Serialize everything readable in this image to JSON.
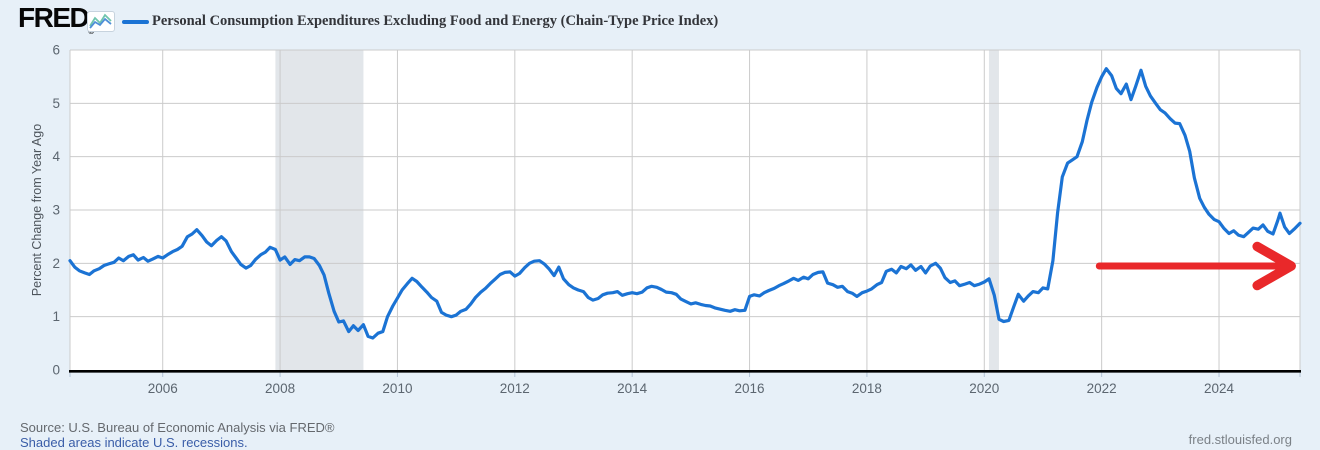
{
  "header": {
    "logo_text": "FRED",
    "registered_mark": "®"
  },
  "footer": {
    "source_text": "Source: U.S. Bureau of Economic Analysis via FRED®",
    "recession_note": "Shaded areas indicate U.S. recessions.",
    "site_url": "fred.stlouisfed.org"
  },
  "colors": {
    "background": "#e7f0f8",
    "plot_background": "#ffffff",
    "grid": "#cbcbcb",
    "axis": "#000000",
    "tick": "#b3c3d6",
    "tick_label": "#5c6670",
    "recession": "#e2e6ea",
    "series": "#1b73d4",
    "arrow": "#e9282a",
    "link": "#3a5da8",
    "source_text": "#65696e",
    "url_text": "#7b8187",
    "title_text": "#33353a",
    "logo_icon_blue": "#4f8fd8",
    "logo_icon_teal": "#6fc5ad"
  },
  "chart_data": {
    "type": "line",
    "title": "Personal Consumption Expenditures Excluding Food and Energy (Chain-Type Price Index)",
    "xlabel": "",
    "ylabel": "Percent Change from Year Ago",
    "x_domain": [
      2004.42,
      2025.38
    ],
    "ylim": [
      0,
      6
    ],
    "x_ticks": [
      2006,
      2008,
      2010,
      2012,
      2014,
      2016,
      2018,
      2020,
      2022,
      2024
    ],
    "y_ticks": [
      0,
      1,
      2,
      3,
      4,
      5,
      6
    ],
    "grid": true,
    "legend_position": "top-left",
    "recession_bands": [
      [
        2007.92,
        2009.42
      ],
      [
        2020.08,
        2020.25
      ]
    ],
    "annotation_arrow": {
      "from_year": 2021.96,
      "to_year": 2025.23,
      "value": 1.95
    },
    "series": [
      {
        "name": "Personal Consumption Expenditures Excluding Food and Energy (Chain-Type Price Index)",
        "units": "Percent Change from Year Ago",
        "points": [
          [
            2004.42,
            2.05
          ],
          [
            2004.5,
            1.93
          ],
          [
            2004.58,
            1.86
          ],
          [
            2004.67,
            1.82
          ],
          [
            2004.75,
            1.79
          ],
          [
            2004.83,
            1.86
          ],
          [
            2004.92,
            1.9
          ],
          [
            2005.0,
            1.96
          ],
          [
            2005.08,
            1.99
          ],
          [
            2005.17,
            2.02
          ],
          [
            2005.25,
            2.1
          ],
          [
            2005.33,
            2.05
          ],
          [
            2005.42,
            2.13
          ],
          [
            2005.5,
            2.16
          ],
          [
            2005.58,
            2.06
          ],
          [
            2005.67,
            2.11
          ],
          [
            2005.75,
            2.04
          ],
          [
            2005.83,
            2.08
          ],
          [
            2005.92,
            2.13
          ],
          [
            2006.0,
            2.1
          ],
          [
            2006.08,
            2.16
          ],
          [
            2006.17,
            2.22
          ],
          [
            2006.25,
            2.26
          ],
          [
            2006.33,
            2.32
          ],
          [
            2006.42,
            2.5
          ],
          [
            2006.5,
            2.55
          ],
          [
            2006.58,
            2.63
          ],
          [
            2006.67,
            2.52
          ],
          [
            2006.75,
            2.4
          ],
          [
            2006.83,
            2.33
          ],
          [
            2006.92,
            2.43
          ],
          [
            2007.0,
            2.5
          ],
          [
            2007.08,
            2.42
          ],
          [
            2007.17,
            2.22
          ],
          [
            2007.25,
            2.1
          ],
          [
            2007.33,
            1.98
          ],
          [
            2007.42,
            1.91
          ],
          [
            2007.5,
            1.96
          ],
          [
            2007.58,
            2.07
          ],
          [
            2007.67,
            2.16
          ],
          [
            2007.75,
            2.21
          ],
          [
            2007.83,
            2.3
          ],
          [
            2007.92,
            2.26
          ],
          [
            2008.0,
            2.06
          ],
          [
            2008.08,
            2.12
          ],
          [
            2008.17,
            1.98
          ],
          [
            2008.25,
            2.07
          ],
          [
            2008.33,
            2.05
          ],
          [
            2008.42,
            2.12
          ],
          [
            2008.5,
            2.12
          ],
          [
            2008.58,
            2.09
          ],
          [
            2008.67,
            1.96
          ],
          [
            2008.75,
            1.78
          ],
          [
            2008.83,
            1.44
          ],
          [
            2008.92,
            1.1
          ],
          [
            2009.0,
            0.9
          ],
          [
            2009.08,
            0.92
          ],
          [
            2009.17,
            0.72
          ],
          [
            2009.25,
            0.83
          ],
          [
            2009.33,
            0.74
          ],
          [
            2009.42,
            0.85
          ],
          [
            2009.5,
            0.63
          ],
          [
            2009.58,
            0.6
          ],
          [
            2009.67,
            0.69
          ],
          [
            2009.75,
            0.72
          ],
          [
            2009.83,
            1.0
          ],
          [
            2009.92,
            1.2
          ],
          [
            2010.0,
            1.35
          ],
          [
            2010.08,
            1.5
          ],
          [
            2010.17,
            1.62
          ],
          [
            2010.25,
            1.72
          ],
          [
            2010.33,
            1.66
          ],
          [
            2010.42,
            1.55
          ],
          [
            2010.5,
            1.46
          ],
          [
            2010.58,
            1.36
          ],
          [
            2010.67,
            1.29
          ],
          [
            2010.75,
            1.08
          ],
          [
            2010.83,
            1.03
          ],
          [
            2010.92,
            1.0
          ],
          [
            2011.0,
            1.03
          ],
          [
            2011.08,
            1.1
          ],
          [
            2011.17,
            1.14
          ],
          [
            2011.25,
            1.24
          ],
          [
            2011.33,
            1.36
          ],
          [
            2011.42,
            1.46
          ],
          [
            2011.5,
            1.53
          ],
          [
            2011.58,
            1.62
          ],
          [
            2011.67,
            1.71
          ],
          [
            2011.75,
            1.79
          ],
          [
            2011.83,
            1.83
          ],
          [
            2011.92,
            1.84
          ],
          [
            2012.0,
            1.76
          ],
          [
            2012.08,
            1.81
          ],
          [
            2012.17,
            1.92
          ],
          [
            2012.25,
            2.0
          ],
          [
            2012.33,
            2.04
          ],
          [
            2012.42,
            2.05
          ],
          [
            2012.5,
            1.99
          ],
          [
            2012.58,
            1.9
          ],
          [
            2012.67,
            1.77
          ],
          [
            2012.75,
            1.93
          ],
          [
            2012.83,
            1.71
          ],
          [
            2012.92,
            1.6
          ],
          [
            2013.0,
            1.54
          ],
          [
            2013.08,
            1.5
          ],
          [
            2013.17,
            1.47
          ],
          [
            2013.25,
            1.36
          ],
          [
            2013.33,
            1.31
          ],
          [
            2013.42,
            1.34
          ],
          [
            2013.5,
            1.41
          ],
          [
            2013.58,
            1.44
          ],
          [
            2013.67,
            1.45
          ],
          [
            2013.75,
            1.47
          ],
          [
            2013.83,
            1.4
          ],
          [
            2013.92,
            1.43
          ],
          [
            2014.0,
            1.45
          ],
          [
            2014.08,
            1.43
          ],
          [
            2014.17,
            1.46
          ],
          [
            2014.25,
            1.54
          ],
          [
            2014.33,
            1.57
          ],
          [
            2014.42,
            1.55
          ],
          [
            2014.5,
            1.51
          ],
          [
            2014.58,
            1.46
          ],
          [
            2014.67,
            1.45
          ],
          [
            2014.75,
            1.42
          ],
          [
            2014.83,
            1.33
          ],
          [
            2014.92,
            1.28
          ],
          [
            2015.0,
            1.24
          ],
          [
            2015.08,
            1.26
          ],
          [
            2015.17,
            1.23
          ],
          [
            2015.25,
            1.21
          ],
          [
            2015.33,
            1.2
          ],
          [
            2015.42,
            1.16
          ],
          [
            2015.5,
            1.14
          ],
          [
            2015.58,
            1.12
          ],
          [
            2015.67,
            1.1
          ],
          [
            2015.75,
            1.13
          ],
          [
            2015.83,
            1.11
          ],
          [
            2015.92,
            1.12
          ],
          [
            2016.0,
            1.38
          ],
          [
            2016.08,
            1.41
          ],
          [
            2016.17,
            1.39
          ],
          [
            2016.25,
            1.45
          ],
          [
            2016.33,
            1.49
          ],
          [
            2016.42,
            1.53
          ],
          [
            2016.5,
            1.58
          ],
          [
            2016.58,
            1.62
          ],
          [
            2016.67,
            1.67
          ],
          [
            2016.75,
            1.72
          ],
          [
            2016.83,
            1.68
          ],
          [
            2016.92,
            1.74
          ],
          [
            2017.0,
            1.71
          ],
          [
            2017.08,
            1.79
          ],
          [
            2017.17,
            1.83
          ],
          [
            2017.25,
            1.84
          ],
          [
            2017.33,
            1.63
          ],
          [
            2017.42,
            1.6
          ],
          [
            2017.5,
            1.55
          ],
          [
            2017.58,
            1.57
          ],
          [
            2017.67,
            1.47
          ],
          [
            2017.75,
            1.44
          ],
          [
            2017.83,
            1.38
          ],
          [
            2017.92,
            1.45
          ],
          [
            2018.0,
            1.48
          ],
          [
            2018.08,
            1.52
          ],
          [
            2018.17,
            1.6
          ],
          [
            2018.25,
            1.64
          ],
          [
            2018.33,
            1.85
          ],
          [
            2018.42,
            1.89
          ],
          [
            2018.5,
            1.82
          ],
          [
            2018.58,
            1.94
          ],
          [
            2018.67,
            1.9
          ],
          [
            2018.75,
            1.97
          ],
          [
            2018.83,
            1.87
          ],
          [
            2018.92,
            1.94
          ],
          [
            2019.0,
            1.82
          ],
          [
            2019.08,
            1.95
          ],
          [
            2019.17,
            2.0
          ],
          [
            2019.25,
            1.91
          ],
          [
            2019.33,
            1.73
          ],
          [
            2019.42,
            1.64
          ],
          [
            2019.5,
            1.67
          ],
          [
            2019.58,
            1.58
          ],
          [
            2019.67,
            1.61
          ],
          [
            2019.75,
            1.64
          ],
          [
            2019.83,
            1.58
          ],
          [
            2019.92,
            1.61
          ],
          [
            2020.0,
            1.65
          ],
          [
            2020.08,
            1.71
          ],
          [
            2020.17,
            1.4
          ],
          [
            2020.25,
            0.95
          ],
          [
            2020.33,
            0.91
          ],
          [
            2020.42,
            0.93
          ],
          [
            2020.5,
            1.18
          ],
          [
            2020.58,
            1.42
          ],
          [
            2020.67,
            1.29
          ],
          [
            2020.75,
            1.39
          ],
          [
            2020.83,
            1.47
          ],
          [
            2020.92,
            1.45
          ],
          [
            2021.0,
            1.54
          ],
          [
            2021.08,
            1.52
          ],
          [
            2021.17,
            2.05
          ],
          [
            2021.25,
            2.95
          ],
          [
            2021.33,
            3.62
          ],
          [
            2021.42,
            3.88
          ],
          [
            2021.5,
            3.94
          ],
          [
            2021.58,
            4.0
          ],
          [
            2021.67,
            4.28
          ],
          [
            2021.75,
            4.68
          ],
          [
            2021.83,
            5.02
          ],
          [
            2021.92,
            5.3
          ],
          [
            2022.0,
            5.5
          ],
          [
            2022.08,
            5.65
          ],
          [
            2022.17,
            5.52
          ],
          [
            2022.25,
            5.28
          ],
          [
            2022.33,
            5.18
          ],
          [
            2022.42,
            5.36
          ],
          [
            2022.5,
            5.07
          ],
          [
            2022.58,
            5.32
          ],
          [
            2022.67,
            5.62
          ],
          [
            2022.75,
            5.32
          ],
          [
            2022.83,
            5.14
          ],
          [
            2022.92,
            5.0
          ],
          [
            2023.0,
            4.88
          ],
          [
            2023.08,
            4.82
          ],
          [
            2023.17,
            4.71
          ],
          [
            2023.25,
            4.63
          ],
          [
            2023.33,
            4.62
          ],
          [
            2023.42,
            4.4
          ],
          [
            2023.5,
            4.1
          ],
          [
            2023.58,
            3.6
          ],
          [
            2023.67,
            3.22
          ],
          [
            2023.75,
            3.05
          ],
          [
            2023.83,
            2.92
          ],
          [
            2023.92,
            2.82
          ],
          [
            2024.0,
            2.78
          ],
          [
            2024.08,
            2.66
          ],
          [
            2024.17,
            2.56
          ],
          [
            2024.25,
            2.61
          ],
          [
            2024.33,
            2.53
          ],
          [
            2024.42,
            2.5
          ],
          [
            2024.5,
            2.58
          ],
          [
            2024.58,
            2.66
          ],
          [
            2024.67,
            2.64
          ],
          [
            2024.75,
            2.72
          ],
          [
            2024.83,
            2.6
          ],
          [
            2024.92,
            2.55
          ],
          [
            2025.0,
            2.8
          ],
          [
            2025.04,
            2.94
          ],
          [
            2025.12,
            2.68
          ],
          [
            2025.2,
            2.56
          ],
          [
            2025.28,
            2.64
          ],
          [
            2025.38,
            2.75
          ]
        ]
      }
    ]
  }
}
